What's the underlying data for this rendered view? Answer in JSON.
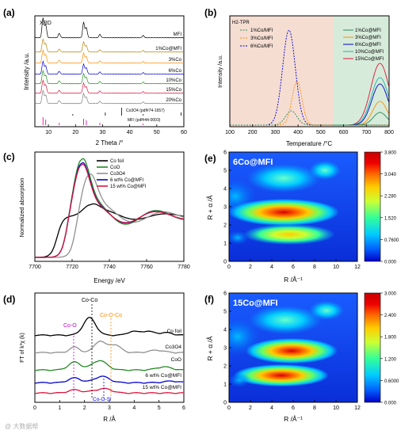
{
  "watermark": "@ 大数据帮",
  "colorbar_colors": [
    "#0000c8",
    "#0066ff",
    "#00ccff",
    "#33ff99",
    "#ccff33",
    "#ffcc00",
    "#ff6600",
    "#ee0000",
    "#c80000"
  ],
  "panels": {
    "a": {
      "label": "(a)",
      "corner_text": "XRD",
      "xlabel": "2 Theta /°",
      "ylabel": "Intensity /a.u.",
      "x_ticks": [
        "10",
        "20",
        "30",
        "40",
        "50",
        "60"
      ],
      "trace_labels": [
        "MFI",
        "1%Co@MFI",
        "3%Co",
        "6%Co",
        "10%Co",
        "15%Co",
        "20%Co"
      ],
      "ref_labels": [
        "Co3O4 (pdf#74-1657)",
        "MFI (pdf#44-0003)"
      ],
      "colors": [
        "#000000",
        "#b8860b",
        "#ff8c00",
        "#0000cd",
        "#228b22",
        "#dc143c",
        "#808080"
      ]
    },
    "b": {
      "label": "(b)",
      "corner_text": "H2-TPR",
      "xlabel": "Temperature /°C",
      "ylabel": "Intensity /a.u.",
      "x_ticks": [
        "100",
        "200",
        "300",
        "400",
        "500",
        "600",
        "700",
        "800"
      ],
      "legend_left": [
        {
          "label": "1%Co/MFI",
          "color": "#2e8b57"
        },
        {
          "label": "3%Co/MFI",
          "color": "#ff8c00"
        },
        {
          "label": "6%Co/MFI",
          "color": "#0000cd"
        }
      ],
      "legend_right": [
        {
          "label": "1%Co@MFI",
          "color": "#2e8b57"
        },
        {
          "label": "3%Co@MFI",
          "color": "#ff8c00"
        },
        {
          "label": "6%Co@MFI",
          "color": "#0000cd"
        },
        {
          "label": "10%Co@MFI",
          "color": "#20b2aa"
        },
        {
          "label": "15%Co@MFI",
          "color": "#dc143c"
        }
      ]
    },
    "c": {
      "label": "(c)",
      "xlabel": "Energy /eV",
      "ylabel": "Normalized absorption",
      "x_ticks": [
        "7700",
        "7720",
        "7740",
        "7760",
        "7780"
      ],
      "legend": [
        {
          "label": "Co foil",
          "color": "#000000"
        },
        {
          "label": "CoO",
          "color": "#228b22"
        },
        {
          "label": "Co3O4",
          "color": "#909090"
        },
        {
          "label": "6 wt% Co@MFI",
          "color": "#0000cd"
        },
        {
          "label": "15 wt% Co@MFI",
          "color": "#dc143c"
        }
      ]
    },
    "d": {
      "label": "(d)",
      "xlabel": "R /Å",
      "ylabel": "FT of k³χ (k)",
      "x_ticks": [
        "0",
        "1",
        "2",
        "3",
        "4",
        "5",
        "6"
      ],
      "annotations": {
        "coco": "Co-Co",
        "coo": "Co-O",
        "cooco": "Co-O-Co",
        "coosi": "Co-O-Si"
      },
      "trace_labels": [
        "Co foil",
        "Co3O4",
        "CoO",
        "6 wt% Co@MFI",
        "15 wt% Co@MFI"
      ],
      "colors": [
        "#000000",
        "#909090",
        "#228b22",
        "#0000cd",
        "#dc143c"
      ]
    },
    "e": {
      "label": "(e)",
      "inset_title": "6Co@MFI",
      "xlabel": "R /Å⁻¹",
      "ylabel": "R + α /Å",
      "x_ticks": [
        "0",
        "2",
        "4",
        "6",
        "8",
        "10",
        "12"
      ],
      "y_ticks": [
        "0",
        "1",
        "2",
        "3",
        "4",
        "5",
        "6"
      ],
      "colorbar_ticks": [
        "3.800",
        "3.040",
        "2.280",
        "1.520",
        "0.7600",
        "0.000"
      ]
    },
    "f": {
      "label": "(f)",
      "inset_title": "15Co@MFI",
      "xlabel": "R /Å⁻¹",
      "ylabel": "R + α /Å",
      "x_ticks": [
        "0",
        "2",
        "4",
        "6",
        "8",
        "10",
        "12"
      ],
      "y_ticks": [
        "0",
        "1",
        "2",
        "3",
        "4",
        "5",
        "6"
      ],
      "colorbar_ticks": [
        "3.000",
        "2.400",
        "1.800",
        "1.200",
        "0.6000",
        "0.000"
      ]
    }
  }
}
